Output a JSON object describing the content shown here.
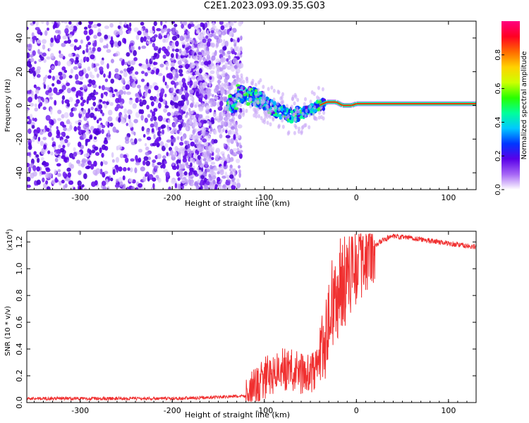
{
  "title": "C2E1.2023.093.09.35.G03",
  "chart_data": [
    {
      "type": "heatmap",
      "xlabel": "Height of straight line (km)",
      "ylabel": "Frequency (Hz)",
      "xlim": [
        -358,
        130
      ],
      "ylim": [
        -50,
        50
      ],
      "xticks": [
        -300,
        -200,
        -100,
        0,
        100
      ],
      "yticks": [
        -40,
        -20,
        0,
        20,
        40
      ],
      "colorbar": {
        "label": "Normalized spectral amplitude",
        "range": [
          0.0,
          1.0
        ],
        "ticks": [
          0.0,
          0.2,
          0.4,
          0.6,
          0.8
        ],
        "colors": [
          "#ffffff",
          "#a666f5",
          "#5a00e8",
          "#0036ff",
          "#00c8ff",
          "#00ff9a",
          "#28ff00",
          "#cdff00",
          "#ffd200",
          "#ff6a00",
          "#ff0022",
          "#ff0080"
        ]
      },
      "ridge": [
        [
          -130,
          7
        ],
        [
          -110,
          5
        ],
        [
          -90,
          -2
        ],
        [
          -70,
          -6
        ],
        [
          -50,
          -3
        ],
        [
          -40,
          0
        ],
        [
          -30,
          2
        ],
        [
          -20,
          2
        ],
        [
          -10,
          0
        ],
        [
          0,
          1
        ],
        [
          50,
          1
        ],
        [
          130,
          1
        ]
      ]
    },
    {
      "type": "line",
      "xlabel": "Height of straight line (km)",
      "ylabel": "SNR (10 * v/v)",
      "y_multiplier": "(x10",
      "y_multiplier_exp": "4",
      "xlim": [
        -358,
        130
      ],
      "ylim": [
        0.0,
        1.28
      ],
      "xticks": [
        -300,
        -200,
        -100,
        0,
        100
      ],
      "yticks": [
        0.0,
        0.2,
        0.4,
        0.6,
        0.8,
        1.0,
        1.2
      ],
      "series": [
        {
          "color": "#f03030",
          "points": [
            [
              -358,
              0.03
            ],
            [
              -200,
              0.03
            ],
            [
              -150,
              0.04
            ],
            [
              -120,
              0.05
            ],
            [
              -110,
              0.1
            ],
            [
              -100,
              0.18
            ],
            [
              -90,
              0.22
            ],
            [
              -80,
              0.25
            ],
            [
              -70,
              0.24
            ],
            [
              -60,
              0.22
            ],
            [
              -50,
              0.2
            ],
            [
              -40,
              0.3
            ],
            [
              -35,
              0.45
            ],
            [
              -30,
              0.6
            ],
            [
              -25,
              0.7
            ],
            [
              -20,
              0.78
            ],
            [
              -15,
              0.85
            ],
            [
              -10,
              0.9
            ],
            [
              -5,
              0.95
            ],
            [
              0,
              1.0
            ],
            [
              10,
              1.1
            ],
            [
              20,
              1.17
            ],
            [
              30,
              1.22
            ],
            [
              40,
              1.24
            ],
            [
              60,
              1.23
            ],
            [
              80,
              1.21
            ],
            [
              100,
              1.19
            ],
            [
              130,
              1.16
            ]
          ]
        }
      ]
    }
  ]
}
